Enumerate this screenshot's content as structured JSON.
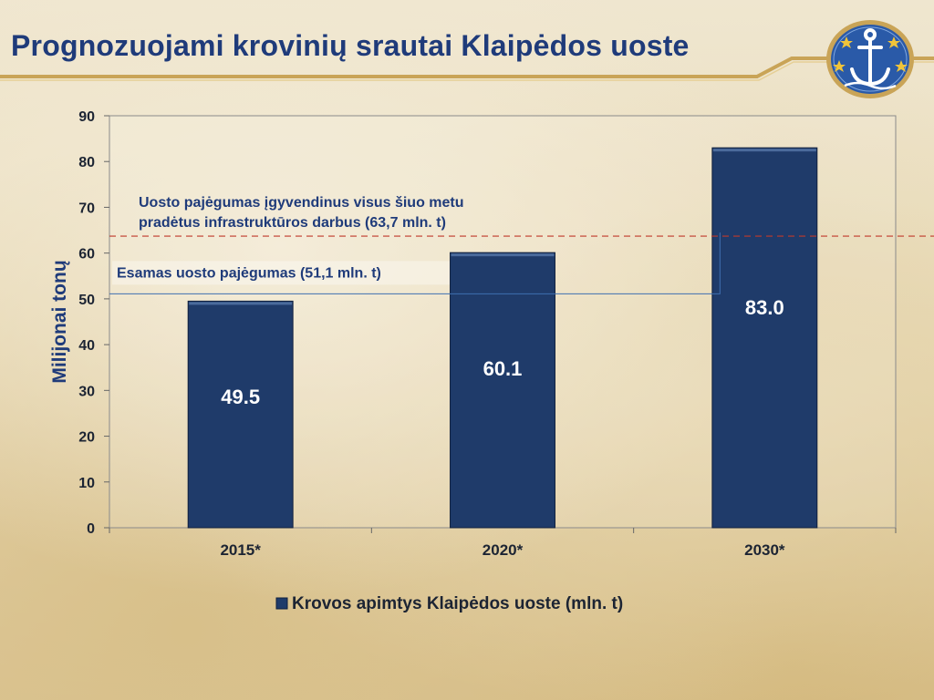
{
  "slide": {
    "title": "Prognozuojami krovinių srautai Klaipėdos uoste"
  },
  "logo": {
    "icon": "anchor-stars-emblem-icon"
  },
  "chart_data": {
    "type": "bar",
    "categories": [
      "2015*",
      "2020*",
      "2030*"
    ],
    "series": [
      {
        "name": "Krovos apimtys Klaipėdos uoste (mln. t)",
        "values": [
          49.5,
          60.1,
          83.0
        ],
        "color": "#1f3b6a"
      }
    ],
    "data_labels": [
      "49.5",
      "60.1",
      "83.0"
    ],
    "ylabel": "Milijonai tonų",
    "xlabel": "",
    "ylim": [
      0,
      90
    ],
    "yticks": [
      0,
      10,
      20,
      30,
      40,
      50,
      60,
      70,
      80,
      90
    ],
    "grid": false,
    "legend_position": "bottom",
    "reference_lines": [
      {
        "value": 63.7,
        "style": "dashed",
        "color": "#c0392b",
        "label_lines": [
          "Uosto pajėgumas įgyvendinus  visus šiuo metu",
          "pradėtus  infrastruktūros darbus  (63,7 mln. t)"
        ]
      },
      {
        "value": 51.1,
        "style": "solid",
        "color": "#3f6fb0",
        "label_lines": [
          "Esamas uosto pajėgumas (51,1 mln. t)"
        ]
      }
    ]
  },
  "colors": {
    "title": "#1f3b7a",
    "bar": "#1f3b6a",
    "accent_gold": "#c9a457",
    "text_dark": "#1c2433"
  }
}
